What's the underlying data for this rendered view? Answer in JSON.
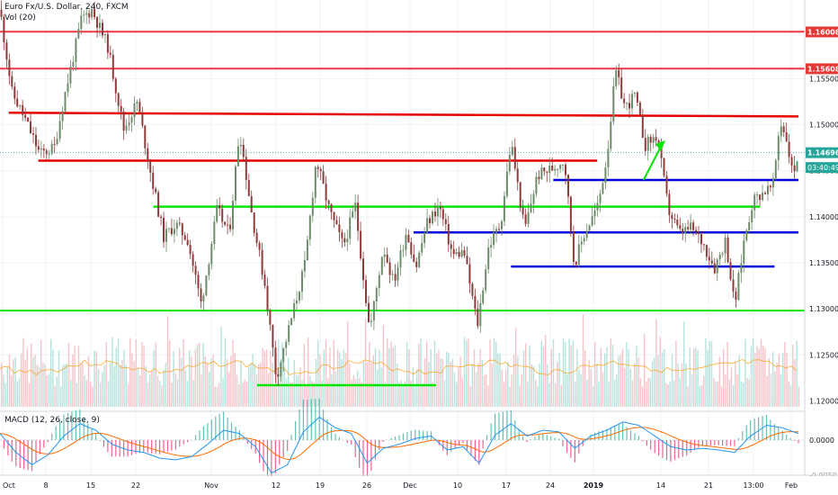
{
  "header": {
    "symbol_title": "Euro Fx/U.S. Dollar, 240, FXCM",
    "volume_label": "Vol (20)",
    "macd_label": "MACD (12, 26, close, 9)"
  },
  "chart_data": {
    "type": "candlestick",
    "title": "Euro Fx/U.S. Dollar, 240, FXCM",
    "price_axis": {
      "ylim": [
        1.11955,
        1.16355
      ],
      "ticks": [
        1.12,
        1.125,
        1.13,
        1.135,
        1.14,
        1.145,
        1.15,
        1.155
      ],
      "tick_labels": [
        "1.12000",
        "1.12500",
        "1.13000",
        "1.13500",
        "1.14000",
        "1.14500",
        "1.15000",
        "1.15500"
      ],
      "badges": [
        {
          "value": 1.16008,
          "label": "1.16008",
          "color": "#e53935"
        },
        {
          "value": 1.15608,
          "label": "1.15608",
          "color": "#e53935"
        },
        {
          "value": 1.14696,
          "label": "1.14696",
          "color": "#26a69a"
        }
      ],
      "countdown": "03:40:49",
      "countdown_value": 1.14535
    },
    "time_axis": {
      "labels": [
        "Oct",
        "8",
        "15",
        "22",
        "Nov",
        "12",
        "19",
        "26",
        "Dec",
        "10",
        "17",
        "24",
        "2019",
        "14",
        "21",
        "13:00",
        "Feb"
      ],
      "bold": [
        "2019"
      ],
      "domain": [
        0,
        100
      ]
    },
    "price_series": [
      {
        "t": 0,
        "p": 1.1625
      },
      {
        "t": 1.5,
        "p": 1.1535
      },
      {
        "t": 3.2,
        "p": 1.1505
      },
      {
        "t": 5.0,
        "p": 1.1468
      },
      {
        "t": 6.8,
        "p": 1.1475
      },
      {
        "t": 8.0,
        "p": 1.1528
      },
      {
        "t": 9.2,
        "p": 1.1575
      },
      {
        "t": 10.2,
        "p": 1.1615
      },
      {
        "t": 11.5,
        "p": 1.1625
      },
      {
        "t": 13.5,
        "p": 1.1585
      },
      {
        "t": 15.5,
        "p": 1.1495
      },
      {
        "t": 17.2,
        "p": 1.1525
      },
      {
        "t": 18.7,
        "p": 1.1455
      },
      {
        "t": 20.5,
        "p": 1.1378
      },
      {
        "t": 22.0,
        "p": 1.1392
      },
      {
        "t": 23.5,
        "p": 1.1375
      },
      {
        "t": 25.2,
        "p": 1.1305
      },
      {
        "t": 27.2,
        "p": 1.1408
      },
      {
        "t": 28.7,
        "p": 1.1381
      },
      {
        "t": 30.0,
        "p": 1.1495
      },
      {
        "t": 31.5,
        "p": 1.1405
      },
      {
        "t": 33.2,
        "p": 1.1325
      },
      {
        "t": 34.6,
        "p": 1.1225
      },
      {
        "t": 36.0,
        "p": 1.1272
      },
      {
        "t": 38.2,
        "p": 1.1348
      },
      {
        "t": 39.6,
        "p": 1.1462
      },
      {
        "t": 41.3,
        "p": 1.1405
      },
      {
        "t": 43.0,
        "p": 1.1368
      },
      {
        "t": 44.5,
        "p": 1.1412
      },
      {
        "t": 46.3,
        "p": 1.1275
      },
      {
        "t": 48.0,
        "p": 1.1368
      },
      {
        "t": 49.3,
        "p": 1.1328
      },
      {
        "t": 50.9,
        "p": 1.1385
      },
      {
        "t": 52.1,
        "p": 1.1345
      },
      {
        "t": 53.4,
        "p": 1.1392
      },
      {
        "t": 55.0,
        "p": 1.1412
      },
      {
        "t": 56.7,
        "p": 1.1358
      },
      {
        "t": 58.1,
        "p": 1.1362
      },
      {
        "t": 59.8,
        "p": 1.1282
      },
      {
        "t": 61.2,
        "p": 1.1368
      },
      {
        "t": 62.7,
        "p": 1.1392
      },
      {
        "t": 64.0,
        "p": 1.1482
      },
      {
        "t": 65.7,
        "p": 1.1385
      },
      {
        "t": 67.3,
        "p": 1.1445
      },
      {
        "t": 69.0,
        "p": 1.1452
      },
      {
        "t": 70.7,
        "p": 1.1462
      },
      {
        "t": 71.9,
        "p": 1.1348
      },
      {
        "t": 73.2,
        "p": 1.1382
      },
      {
        "t": 74.9,
        "p": 1.1412
      },
      {
        "t": 76.0,
        "p": 1.1465
      },
      {
        "t": 77.1,
        "p": 1.1558
      },
      {
        "t": 78.3,
        "p": 1.1518
      },
      {
        "t": 79.5,
        "p": 1.1532
      },
      {
        "t": 80.8,
        "p": 1.1478
      },
      {
        "t": 82.3,
        "p": 1.1488
      },
      {
        "t": 83.7,
        "p": 1.1408
      },
      {
        "t": 85.1,
        "p": 1.1382
      },
      {
        "t": 86.6,
        "p": 1.1388
      },
      {
        "t": 88.0,
        "p": 1.1372
      },
      {
        "t": 89.5,
        "p": 1.1345
      },
      {
        "t": 90.9,
        "p": 1.1375
      },
      {
        "t": 92.0,
        "p": 1.1302
      },
      {
        "t": 93.2,
        "p": 1.1375
      },
      {
        "t": 94.3,
        "p": 1.1418
      },
      {
        "t": 95.7,
        "p": 1.1428
      },
      {
        "t": 96.8,
        "p": 1.1432
      },
      {
        "t": 97.7,
        "p": 1.1505
      },
      {
        "t": 98.5,
        "p": 1.1485
      },
      {
        "t": 99.3,
        "p": 1.1445
      },
      {
        "t": 100,
        "p": 1.147
      }
    ],
    "horizontal_levels": [
      {
        "value": 1.1601,
        "color": "#f23645",
        "from": 0,
        "to": 100
      },
      {
        "value": 1.1561,
        "color": "#f23645",
        "from": 0,
        "to": 100
      },
      {
        "value": 1.1298,
        "color": "#00e600",
        "from": 0,
        "to": 100
      }
    ],
    "trend_lines": [
      {
        "p1": [
          1.1,
          1.1513
        ],
        "p2": [
          100,
          1.1509
        ],
        "color": "#e50000"
      },
      {
        "p1": [
          4.8,
          1.1461
        ],
        "p2": [
          74.8,
          1.1461
        ],
        "color": "#e50000"
      },
      {
        "p1": [
          19.2,
          1.1411
        ],
        "p2": [
          95.2,
          1.1411
        ],
        "color": "#00e600"
      },
      {
        "p1": [
          69.3,
          1.144
        ],
        "p2": [
          100,
          1.144
        ],
        "color": "#0000d8"
      },
      {
        "p1": [
          51.8,
          1.1383
        ],
        "p2": [
          100,
          1.1383
        ],
        "color": "#0000d8"
      },
      {
        "p1": [
          64.0,
          1.1346
        ],
        "p2": [
          97.0,
          1.1346
        ],
        "color": "#0000d8"
      },
      {
        "p1": [
          32.2,
          1.1217
        ],
        "p2": [
          54.6,
          1.1217
        ],
        "color": "#00e600"
      }
    ],
    "arrow": {
      "from": [
        80.6,
        1.144
      ],
      "to": [
        83.0,
        1.148
      ],
      "color": "#00e600"
    },
    "volume": {
      "description": "pink/teal volume bars with orange 20-period average line",
      "avg_color": "#ff9800"
    },
    "macd": {
      "ylim": [
        -0.0055,
        0.0035
      ],
      "ticks": [
        0.0
      ],
      "tick_labels": [
        "0.0000"
      ],
      "bottom_label": "-0.0050",
      "macd_color": "#2196f3",
      "signal_color": "#ff6d00",
      "macd_series": [
        {
          "t": 0,
          "v": 0.0008
        },
        {
          "t": 2,
          "v": -0.0015
        },
        {
          "t": 4,
          "v": -0.003
        },
        {
          "t": 6,
          "v": -0.0018
        },
        {
          "t": 8,
          "v": 0.0005
        },
        {
          "t": 10,
          "v": 0.002
        },
        {
          "t": 12,
          "v": 0.0012
        },
        {
          "t": 14,
          "v": -0.0005
        },
        {
          "t": 16,
          "v": -0.0012
        },
        {
          "t": 18,
          "v": -0.0015
        },
        {
          "t": 20,
          "v": -0.0022
        },
        {
          "t": 22,
          "v": -0.0024
        },
        {
          "t": 24,
          "v": -0.002
        },
        {
          "t": 26,
          "v": -0.0005
        },
        {
          "t": 28,
          "v": 0.0012
        },
        {
          "t": 30,
          "v": 0.0008
        },
        {
          "t": 32,
          "v": -0.0008
        },
        {
          "t": 34,
          "v": -0.004
        },
        {
          "t": 36,
          "v": -0.003
        },
        {
          "t": 38,
          "v": 0.001
        },
        {
          "t": 40,
          "v": 0.0028
        },
        {
          "t": 42,
          "v": 0.0015
        },
        {
          "t": 44,
          "v": 0.0008
        },
        {
          "t": 46,
          "v": -0.0028
        },
        {
          "t": 48,
          "v": -0.001
        },
        {
          "t": 50,
          "v": -0.0005
        },
        {
          "t": 52,
          "v": 0.0002
        },
        {
          "t": 54,
          "v": 0.0005
        },
        {
          "t": 56,
          "v": -0.0012
        },
        {
          "t": 58,
          "v": -0.0008
        },
        {
          "t": 60,
          "v": -0.0028
        },
        {
          "t": 62,
          "v": 0.0006
        },
        {
          "t": 64,
          "v": 0.002
        },
        {
          "t": 66,
          "v": 0.0005
        },
        {
          "t": 68,
          "v": 0.0012
        },
        {
          "t": 70,
          "v": 0.001
        },
        {
          "t": 72,
          "v": -0.001
        },
        {
          "t": 74,
          "v": 0.0005
        },
        {
          "t": 76,
          "v": 0.0012
        },
        {
          "t": 78,
          "v": 0.0022
        },
        {
          "t": 80,
          "v": 0.0018
        },
        {
          "t": 82,
          "v": 0.0005
        },
        {
          "t": 84,
          "v": -0.0008
        },
        {
          "t": 86,
          "v": -0.0012
        },
        {
          "t": 88,
          "v": -0.001
        },
        {
          "t": 90,
          "v": -0.0012
        },
        {
          "t": 92,
          "v": -0.0015
        },
        {
          "t": 94,
          "v": 0.0005
        },
        {
          "t": 96,
          "v": 0.0018
        },
        {
          "t": 98,
          "v": 0.0015
        },
        {
          "t": 100,
          "v": 0.0008
        }
      ]
    }
  }
}
